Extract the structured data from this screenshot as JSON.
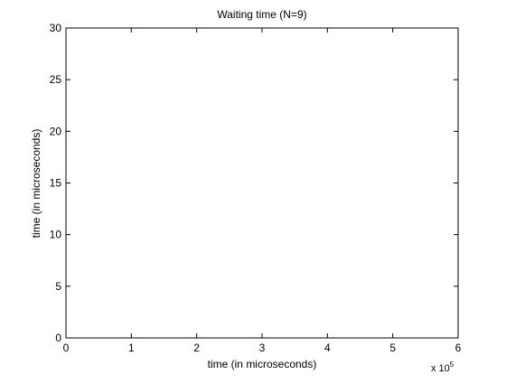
{
  "chart_data": {
    "type": "line",
    "title": "Waiting time (N=9)",
    "xlabel": "time (in microseconds)",
    "ylabel": "time (in microseconds)",
    "xlim": [
      0,
      6
    ],
    "ylim": [
      0,
      30
    ],
    "x_ticks": [
      0,
      1,
      2,
      3,
      4,
      5,
      6
    ],
    "y_ticks": [
      0,
      5,
      10,
      15,
      20,
      25,
      30
    ],
    "x_multiplier": {
      "base": "x 10",
      "exponent": "5"
    },
    "series": [],
    "grid": false,
    "legend": "none",
    "colors": {
      "axes": "#000000",
      "background": "#ffffff"
    }
  }
}
